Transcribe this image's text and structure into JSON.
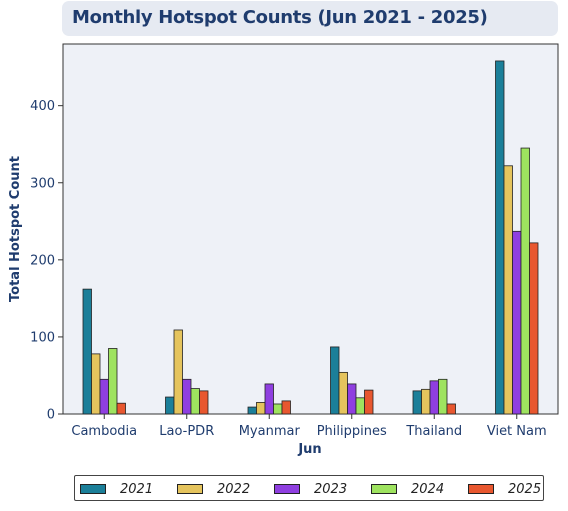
{
  "chart_data": {
    "type": "bar",
    "title": "Monthly Hotspot Counts (Jun 2021 - 2025)",
    "xlabel": "Jun",
    "ylabel": "Total Hotspot Count",
    "categories": [
      "Cambodia",
      "Lao-PDR",
      "Myanmar",
      "Philippines",
      "Thailand",
      "Viet Nam"
    ],
    "ylim": [
      0,
      480
    ],
    "yticks": [
      0,
      100,
      200,
      300,
      400
    ],
    "series": [
      {
        "name": "2021",
        "color": "#1b7f99",
        "values": [
          162,
          22,
          9,
          87,
          30,
          458
        ]
      },
      {
        "name": "2022",
        "color": "#e5c45d",
        "values": [
          78,
          109,
          15,
          54,
          32,
          322
        ]
      },
      {
        "name": "2023",
        "color": "#8f3fe0",
        "values": [
          45,
          45,
          39,
          39,
          43,
          237
        ]
      },
      {
        "name": "2024",
        "color": "#9ee35f",
        "values": [
          85,
          33,
          13,
          21,
          45,
          345
        ]
      },
      {
        "name": "2025",
        "color": "#e8572f",
        "values": [
          14,
          30,
          17,
          31,
          13,
          222
        ]
      }
    ],
    "grid": false,
    "legend_position": "bottom"
  }
}
